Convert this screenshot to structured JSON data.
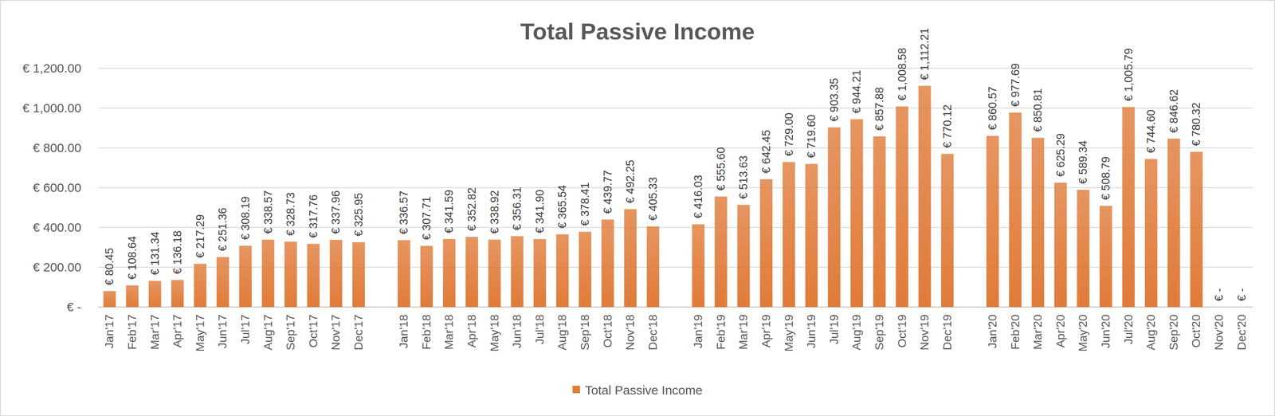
{
  "chart_data": {
    "type": "bar",
    "title": "Total Passive Income",
    "categories": [
      "Jan'17",
      "Feb'17",
      "Mar'17",
      "Apr'17",
      "May'17",
      "Jun'17",
      "Jul'17",
      "Aug'17",
      "Sep'17",
      "Oct'17",
      "Nov'17",
      "Dec'17",
      null,
      "Jan'18",
      "Feb'18",
      "Mar'18",
      "Apr'18",
      "May'18",
      "Jun'18",
      "Jul'18",
      "Aug'18",
      "Sep'18",
      "Oct'18",
      "Nov'18",
      "Dec'18",
      null,
      "Jan'19",
      "Feb'19",
      "Mar'19",
      "Apr'19",
      "May'19",
      "Jun'19",
      "Jul'19",
      "Aug'19",
      "Sep'19",
      "Oct'19",
      "Nov'19",
      "Dec'19",
      null,
      "Jan'20",
      "Feb'20",
      "Mar'20",
      "Apr'20",
      "May'20",
      "Jun'20",
      "Jul'20",
      "Aug'20",
      "Sep'20",
      "Oct'20",
      "Nov'20",
      "Dec'20"
    ],
    "series": [
      {
        "name": "Total Passive Income",
        "color": "#e07b39",
        "values": [
          80.45,
          108.64,
          131.34,
          136.18,
          217.29,
          251.36,
          308.19,
          338.57,
          328.73,
          317.76,
          337.96,
          325.95,
          null,
          336.57,
          307.71,
          341.59,
          352.82,
          338.92,
          356.31,
          341.9,
          365.54,
          378.41,
          439.77,
          492.25,
          405.33,
          null,
          416.03,
          555.6,
          513.63,
          642.45,
          729.0,
          719.6,
          903.35,
          944.21,
          857.88,
          1008.58,
          1112.21,
          770.12,
          null,
          860.57,
          977.69,
          850.81,
          625.29,
          589.34,
          508.79,
          1005.79,
          744.6,
          846.62,
          780.32,
          0,
          0
        ],
        "value_labels": [
          "€ 80.45",
          "€ 108.64",
          "€ 131.34",
          "€ 136.18",
          "€ 217.29",
          "€ 251.36",
          "€ 308.19",
          "€ 338.57",
          "€ 328.73",
          "€ 317.76",
          "€ 337.96",
          "€ 325.95",
          null,
          "€ 336.57",
          "€ 307.71",
          "€ 341.59",
          "€ 352.82",
          "€ 338.92",
          "€ 356.31",
          "€ 341.90",
          "€ 365.54",
          "€ 378.41",
          "€ 439.77",
          "€ 492.25",
          "€ 405.33",
          null,
          "€ 416.03",
          "€ 555.60",
          "€ 513.63",
          "€ 642.45",
          "€ 729.00",
          "€ 719.60",
          "€ 903.35",
          "€ 944.21",
          "€ 857.88",
          "€ 1,008.58",
          "€ 1,112.21",
          "€ 770.12",
          null,
          "€ 860.57",
          "€ 977.69",
          "€ 850.81",
          "€ 625.29",
          "€ 589.34",
          "€ 508.79",
          "€ 1,005.79",
          "€ 744.60",
          "€ 846.62",
          "€ 780.32",
          "€ -",
          "€ -"
        ]
      }
    ],
    "ylim": [
      0,
      1200
    ],
    "yticks": [
      {
        "value": 0,
        "label": "€ -"
      },
      {
        "value": 200,
        "label": "€ 200.00"
      },
      {
        "value": 400,
        "label": "€ 400.00"
      },
      {
        "value": 600,
        "label": "€ 600.00"
      },
      {
        "value": 800,
        "label": "€ 800.00"
      },
      {
        "value": 1000,
        "label": "€ 1,000.00"
      },
      {
        "value": 1200,
        "label": "€ 1,200.00"
      }
    ],
    "grid": true,
    "data_labels": true,
    "legend": "bottom"
  }
}
